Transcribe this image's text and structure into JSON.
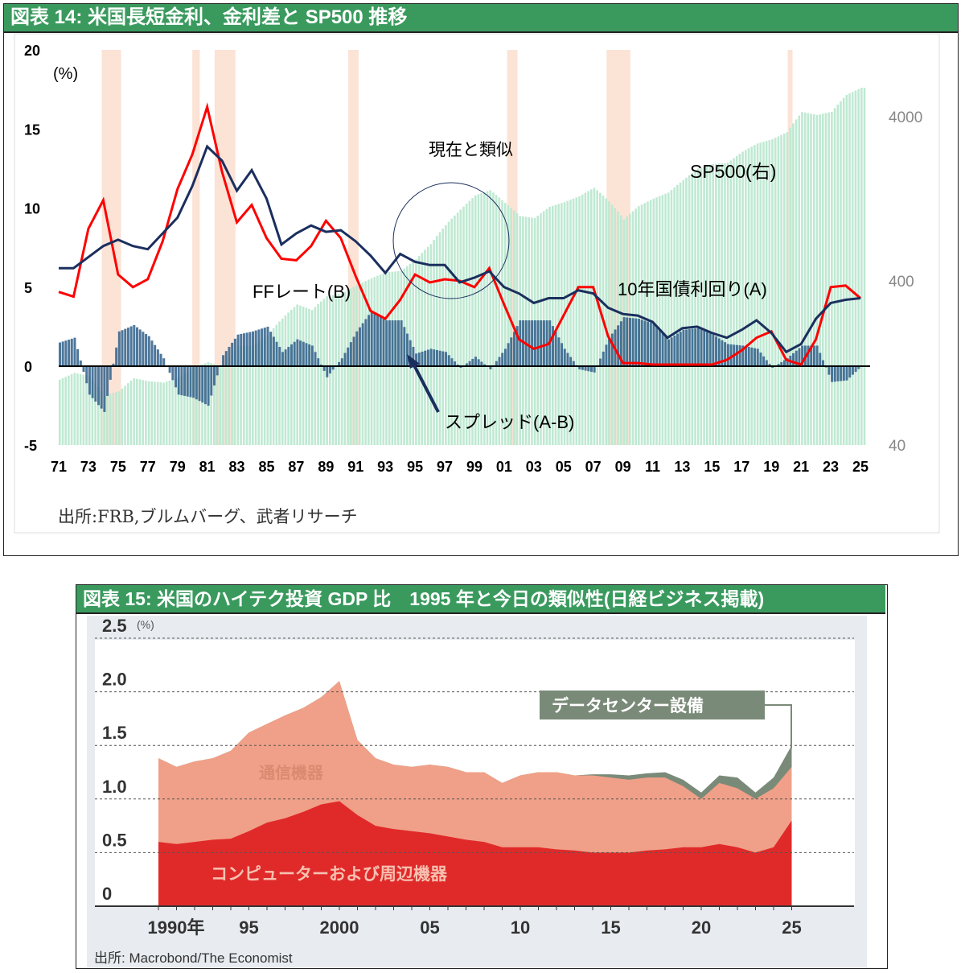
{
  "chart_data": [
    {
      "type": "line",
      "title": "図表 14: 米国長短金利、金利差と SP500 推移",
      "ylabel": "(%)",
      "ylim": [
        -5,
        20
      ],
      "yticks": [
        20,
        15,
        10,
        5,
        0,
        -5
      ],
      "y2lim": [
        40,
        6000
      ],
      "y2scale": "log",
      "y2ticks": [
        4000,
        400,
        40
      ],
      "xticks": [
        "71",
        "73",
        "75",
        "77",
        "79",
        "81",
        "83",
        "85",
        "87",
        "89",
        "91",
        "93",
        "95",
        "97",
        "99",
        "01",
        "03",
        "05",
        "07",
        "09",
        "11",
        "13",
        "15",
        "17",
        "19",
        "21",
        "23",
        "25"
      ],
      "x": [
        1971,
        1972,
        1973,
        1974,
        1975,
        1976,
        1977,
        1978,
        1979,
        1980,
        1981,
        1982,
        1983,
        1984,
        1985,
        1986,
        1987,
        1988,
        1989,
        1990,
        1991,
        1992,
        1993,
        1994,
        1995,
        1996,
        1997,
        1998,
        1999,
        2000,
        2001,
        2002,
        2003,
        2004,
        2005,
        2006,
        2007,
        2008,
        2009,
        2010,
        2011,
        2012,
        2013,
        2014,
        2015,
        2016,
        2017,
        2018,
        2019,
        2020,
        2021,
        2022,
        2023,
        2024,
        2025
      ],
      "series": [
        {
          "name": "10年国債利回り(A)",
          "color": "#1b2f5e",
          "values": [
            6.2,
            6.2,
            6.9,
            7.6,
            8.0,
            7.6,
            7.4,
            8.4,
            9.4,
            11.4,
            13.9,
            13.0,
            11.1,
            12.4,
            10.6,
            7.7,
            8.4,
            8.9,
            8.5,
            8.6,
            7.9,
            7.0,
            5.9,
            7.1,
            6.6,
            6.4,
            6.4,
            5.3,
            5.6,
            6.0,
            5.0,
            4.6,
            4.0,
            4.3,
            4.3,
            4.8,
            4.6,
            3.7,
            3.3,
            3.2,
            2.8,
            1.8,
            2.4,
            2.5,
            2.1,
            1.8,
            2.3,
            2.9,
            2.1,
            0.9,
            1.4,
            3.0,
            4.0,
            4.2,
            4.3
          ]
        },
        {
          "name": "FFレート(B)",
          "color": "#ff0000",
          "values": [
            4.7,
            4.4,
            8.7,
            10.5,
            5.8,
            5.0,
            5.5,
            7.9,
            11.2,
            13.4,
            16.4,
            12.3,
            9.1,
            10.2,
            8.1,
            6.8,
            6.7,
            7.6,
            9.2,
            8.1,
            5.7,
            3.5,
            3.0,
            4.2,
            5.8,
            5.3,
            5.5,
            5.4,
            5.0,
            6.2,
            3.9,
            1.7,
            1.1,
            1.4,
            3.2,
            5.0,
            5.0,
            1.9,
            0.2,
            0.2,
            0.1,
            0.1,
            0.1,
            0.1,
            0.1,
            0.4,
            1.0,
            1.8,
            2.2,
            0.4,
            0.1,
            1.7,
            5.0,
            5.1,
            4.3
          ]
        },
        {
          "name": "スプレッド(A-B)",
          "color": "#2f5f8a",
          "derived": "A-B"
        },
        {
          "name": "SP500(右)",
          "color": "#b8e6cc",
          "axis": "right",
          "values": [
            100,
            110,
            105,
            80,
            85,
            102,
            98,
            96,
            103,
            118,
            128,
            120,
            160,
            160,
            186,
            236,
            287,
            266,
            322,
            334,
            376,
            415,
            451,
            460,
            541,
            670,
            873,
            1085,
            1327,
            1427,
            1194,
            993,
            965,
            1130,
            1207,
            1310,
            1477,
            1220,
            948,
            1140,
            1268,
            1379,
            1643,
            1931,
            2061,
            2094,
            2449,
            2746,
            2913,
            3218,
            4273,
            4098,
            4285,
            5428,
            6000
          ]
        }
      ],
      "recessions": [
        [
          1973.9,
          1975.2
        ],
        [
          1980.0,
          1980.5
        ],
        [
          1981.5,
          1982.9
        ],
        [
          1990.5,
          1991.2
        ],
        [
          2001.2,
          2001.9
        ],
        [
          2007.9,
          2009.5
        ],
        [
          2020.1,
          2020.3
        ]
      ],
      "annotations": [
        "現在と類似",
        "SP500(右)",
        "FFレート(B)",
        "10年国債利回り(A)",
        "スプレッド(A-B)"
      ],
      "source": "出所:FRB,ブルムバーグ、武者リサーチ"
    },
    {
      "type": "area",
      "title": "図表 15: 米国のハイテク投資 GDP 比　1995 年と今日の類似性(日経ビジネス掲載)",
      "ylabel": "(%)",
      "ylim": [
        0,
        2.5
      ],
      "yticks": [
        "2.5",
        "2.0",
        "1.5",
        "1.0",
        "0.5",
        "0"
      ],
      "xticks": [
        "1990年",
        "95",
        "2000",
        "05",
        "10",
        "15",
        "20",
        "25"
      ],
      "x": [
        1990,
        1991,
        1992,
        1993,
        1994,
        1995,
        1996,
        1997,
        1998,
        1999,
        2000,
        2001,
        2002,
        2003,
        2004,
        2005,
        2006,
        2007,
        2008,
        2009,
        2010,
        2011,
        2012,
        2013,
        2014,
        2015,
        2016,
        2017,
        2018,
        2019,
        2020,
        2021,
        2022,
        2023,
        2024,
        2025
      ],
      "series": [
        {
          "name": "コンピューターおよび周辺機器",
          "color": "#e02a2a",
          "values": [
            0.6,
            0.58,
            0.6,
            0.62,
            0.63,
            0.7,
            0.78,
            0.82,
            0.88,
            0.95,
            0.98,
            0.85,
            0.75,
            0.72,
            0.7,
            0.68,
            0.65,
            0.62,
            0.6,
            0.55,
            0.55,
            0.55,
            0.53,
            0.52,
            0.5,
            0.5,
            0.5,
            0.52,
            0.53,
            0.55,
            0.55,
            0.58,
            0.55,
            0.5,
            0.55,
            0.8
          ]
        },
        {
          "name": "通信機器",
          "color": "#f0a088",
          "cumulative": [
            1.38,
            1.3,
            1.35,
            1.38,
            1.45,
            1.62,
            1.7,
            1.78,
            1.85,
            1.95,
            2.1,
            1.55,
            1.38,
            1.32,
            1.3,
            1.32,
            1.3,
            1.25,
            1.25,
            1.15,
            1.22,
            1.25,
            1.25,
            1.22,
            1.22,
            1.2,
            1.18,
            1.2,
            1.2,
            1.12,
            1.0,
            1.15,
            1.1,
            1.0,
            1.1,
            1.3
          ]
        },
        {
          "name": "データセンター設備",
          "color": "#7a8a78",
          "cumulative": [
            1.38,
            1.3,
            1.35,
            1.38,
            1.45,
            1.62,
            1.7,
            1.78,
            1.85,
            1.95,
            2.1,
            1.55,
            1.38,
            1.32,
            1.3,
            1.32,
            1.3,
            1.25,
            1.25,
            1.15,
            1.22,
            1.25,
            1.25,
            1.22,
            1.23,
            1.23,
            1.22,
            1.24,
            1.25,
            1.18,
            1.06,
            1.22,
            1.2,
            1.06,
            1.2,
            1.5
          ]
        }
      ],
      "source": "出所: Macrobond/The Economist"
    }
  ]
}
